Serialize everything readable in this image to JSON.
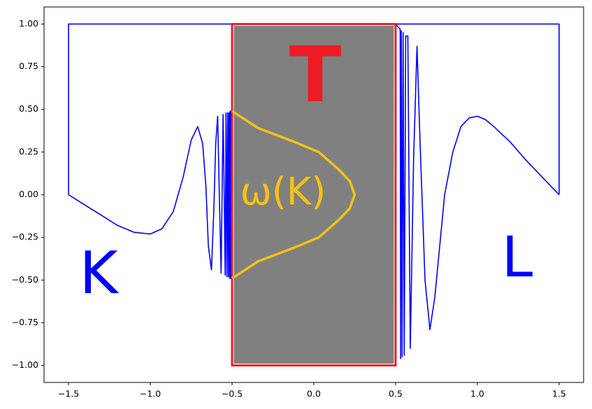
{
  "chart_data": {
    "type": "line",
    "xlim": [
      -1.65,
      1.65
    ],
    "ylim": [
      -1.1,
      1.1
    ],
    "xticks": [
      {
        "value": -1.5,
        "label": "−1.5"
      },
      {
        "value": -1.0,
        "label": "−1.0"
      },
      {
        "value": -0.5,
        "label": "−0.5"
      },
      {
        "value": 0.0,
        "label": "0.0"
      },
      {
        "value": 0.5,
        "label": "0.5"
      },
      {
        "value": 1.0,
        "label": "1.0"
      },
      {
        "value": 1.5,
        "label": "1.5"
      }
    ],
    "yticks": [
      {
        "value": -1.0,
        "label": "−1.00"
      },
      {
        "value": -0.75,
        "label": "−0.75"
      },
      {
        "value": -0.5,
        "label": "−0.50"
      },
      {
        "value": -0.25,
        "label": "−0.25"
      },
      {
        "value": 0.0,
        "label": "0.00"
      },
      {
        "value": 0.25,
        "label": "0.25"
      },
      {
        "value": 0.5,
        "label": "0.50"
      },
      {
        "value": 0.75,
        "label": "0.75"
      },
      {
        "value": 1.0,
        "label": "1.00"
      }
    ],
    "series": [
      {
        "color": "#0000ff",
        "x": [
          -1.5,
          -1.5,
          1.5,
          1.5
        ],
        "values": [
          0,
          1,
          1,
          0
        ]
      },
      {
        "color": "#0000ff",
        "x": [
          -1.5,
          -1.4,
          -1.3,
          -1.2,
          -1.1,
          -1.0,
          -0.93,
          -0.86,
          -0.8,
          -0.75,
          -0.71,
          -0.68,
          -0.66,
          -0.645,
          -0.626,
          -0.612,
          -0.6,
          -0.588,
          -0.578,
          -0.567,
          -0.561,
          -0.555,
          -0.548,
          -0.542,
          -0.537,
          -0.532,
          -0.527,
          -0.523,
          -0.519,
          -0.515,
          -0.512,
          -0.509,
          -0.506,
          -0.504,
          -0.502
        ],
        "values": [
          0,
          -0.06,
          -0.12,
          -0.18,
          -0.22,
          -0.23,
          -0.2,
          -0.1,
          0.1,
          0.32,
          0.4,
          0.3,
          0.05,
          -0.3,
          -0.44,
          -0.1,
          0.3,
          0.46,
          0.0,
          -0.46,
          0.0,
          0.47,
          0.0,
          -0.47,
          0.48,
          -0.48,
          0.48,
          -0.48,
          0.48,
          -0.49,
          0.49,
          -0.49,
          0.49,
          -0.49,
          0.49
        ]
      },
      {
        "color": "#0000ff",
        "x": [
          0.5,
          0.528,
          0.531,
          0.535,
          0.54,
          0.546,
          0.553,
          0.562,
          0.575,
          0.59,
          0.61,
          0.631,
          0.65,
          0.68,
          0.71,
          0.74,
          0.8,
          0.85,
          0.9,
          0.95,
          1.0,
          1.05,
          1.1,
          1.2,
          1.3,
          1.4,
          1.5
        ],
        "values": [
          1,
          0.97,
          -0.96,
          0.96,
          -0.95,
          0.95,
          -0.94,
          0.93,
          0.93,
          -0.9,
          0.2,
          0.87,
          0.3,
          -0.5,
          -0.79,
          -0.6,
          0.0,
          0.25,
          0.4,
          0.45,
          0.46,
          0.44,
          0.4,
          0.31,
          0.2,
          0.1,
          0
        ]
      },
      {
        "color": "#f5c211",
        "x": [
          -0.5,
          -0.34,
          -0.12,
          0.03,
          0.15,
          0.22,
          0.25,
          0.22,
          0.15,
          0.03,
          -0.12,
          -0.34,
          -0.5
        ],
        "values": [
          0.49,
          0.39,
          0.31,
          0.25,
          0.15,
          0.08,
          0,
          -0.08,
          -0.15,
          -0.25,
          -0.31,
          -0.39,
          -0.49
        ]
      }
    ],
    "region": {
      "x": [
        -0.5,
        0.5
      ],
      "y": [
        -1,
        1
      ],
      "color": "#808080",
      "edgecolor": "#ee1c25"
    },
    "annotations": [
      {
        "text": "T",
        "color": "#ee1c25"
      },
      {
        "text": "ω(K)",
        "color": "#f5c211"
      },
      {
        "text": "K",
        "color": "#0000ff"
      },
      {
        "text": "L",
        "color": "#0000ff"
      }
    ]
  }
}
